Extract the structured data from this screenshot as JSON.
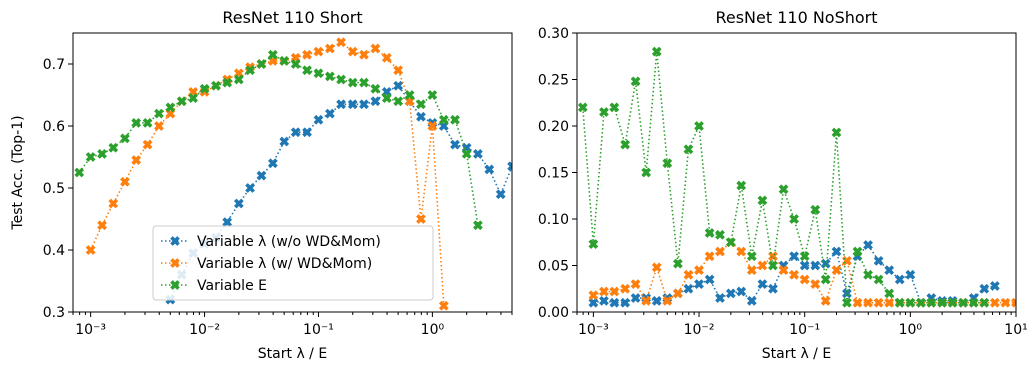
{
  "chart_data": [
    {
      "type": "line",
      "title": "ResNet 110 Short",
      "xlabel": "Start λ / E",
      "ylabel": "Test Acc. (Top-1)",
      "log_x": true,
      "legend": "lower center",
      "x": [
        0.000794,
        0.001,
        0.00126,
        0.00158,
        0.002,
        0.00251,
        0.00316,
        0.00398,
        0.00501,
        0.00631,
        0.00794,
        0.01,
        0.0126,
        0.0158,
        0.02,
        0.0251,
        0.0316,
        0.0398,
        0.0501,
        0.0631,
        0.0794,
        0.1,
        0.126,
        0.158,
        0.2,
        0.251,
        0.316,
        0.398,
        0.501,
        0.631,
        0.794,
        1,
        1.26,
        1.58,
        2,
        2.51,
        3.16,
        3.98,
        5.01
      ],
      "xlim": [
        0.0007,
        5
      ],
      "ylim": [
        0.3,
        0.75
      ],
      "xticks": [
        {
          "value": 0.001,
          "label": "10⁻³"
        },
        {
          "value": 0.01,
          "label": "10⁻²"
        },
        {
          "value": 0.1,
          "label": "10⁻¹"
        },
        {
          "value": 1,
          "label": "10⁰"
        }
      ],
      "yticks": [
        0.3,
        0.4,
        0.5,
        0.6,
        0.7
      ],
      "series": [
        {
          "name": "Variable λ (w/o WD&Mom)",
          "color": "#1f77b4",
          "values": [
            null,
            null,
            null,
            null,
            null,
            null,
            null,
            null,
            0.32,
            0.36,
            0.395,
            0.41,
            0.42,
            0.445,
            0.475,
            0.5,
            0.52,
            0.54,
            0.575,
            0.59,
            0.59,
            0.61,
            0.62,
            0.635,
            0.635,
            0.635,
            0.64,
            0.655,
            0.665,
            0.64,
            0.615,
            0.605,
            0.6,
            0.57,
            0.565,
            0.555,
            0.53,
            0.49,
            0.535
          ]
        },
        {
          "name": "Variable λ (w/ WD&Mom)",
          "color": "#ff7f0e",
          "values": [
            null,
            0.4,
            0.44,
            0.475,
            0.51,
            0.545,
            0.57,
            0.6,
            0.62,
            0.64,
            0.655,
            0.655,
            0.665,
            0.675,
            0.685,
            0.695,
            0.7,
            0.705,
            0.705,
            0.71,
            0.715,
            0.72,
            0.725,
            0.735,
            0.72,
            0.715,
            0.725,
            0.71,
            0.69,
            0.64,
            0.45,
            0.6,
            0.31,
            null,
            null,
            null,
            null,
            null,
            null
          ]
        },
        {
          "name": "Variable E",
          "color": "#2ca02c",
          "values": [
            0.525,
            0.55,
            0.555,
            0.565,
            0.58,
            0.605,
            0.605,
            0.62,
            0.63,
            0.64,
            0.645,
            0.66,
            0.665,
            0.67,
            0.675,
            0.69,
            0.7,
            0.715,
            0.705,
            0.7,
            0.69,
            0.685,
            0.68,
            0.675,
            0.67,
            0.67,
            0.66,
            0.645,
            0.64,
            0.65,
            0.635,
            0.65,
            0.61,
            0.61,
            0.555,
            0.44,
            null,
            null,
            null
          ]
        }
      ]
    },
    {
      "type": "line",
      "title": "ResNet 110 NoShort",
      "xlabel": "Start λ / E",
      "log_x": true,
      "x": [
        0.000794,
        0.001,
        0.00126,
        0.00158,
        0.002,
        0.00251,
        0.00316,
        0.00398,
        0.00501,
        0.00631,
        0.00794,
        0.01,
        0.0126,
        0.0158,
        0.02,
        0.0251,
        0.0316,
        0.0398,
        0.0501,
        0.0631,
        0.0794,
        0.1,
        0.126,
        0.158,
        0.2,
        0.251,
        0.316,
        0.398,
        0.501,
        0.631,
        0.794,
        1,
        1.26,
        1.58,
        2,
        2.51,
        3.16,
        3.98,
        5.01,
        6.31,
        7.94,
        10
      ],
      "xlim": [
        0.0007,
        10
      ],
      "ylim": [
        0,
        0.3
      ],
      "xticks": [
        {
          "value": 0.001,
          "label": "10⁻³"
        },
        {
          "value": 0.01,
          "label": "10⁻²"
        },
        {
          "value": 0.1,
          "label": "10⁻¹"
        },
        {
          "value": 1,
          "label": "10⁰"
        },
        {
          "value": 10,
          "label": "10¹"
        }
      ],
      "yticks": [
        {
          "value": 0,
          "label": "0.00"
        },
        {
          "value": 0.05,
          "label": "0.05"
        },
        {
          "value": 0.1,
          "label": "0.10"
        },
        {
          "value": 0.15,
          "label": "0.15"
        },
        {
          "value": 0.2,
          "label": "0.20"
        },
        {
          "value": 0.25,
          "label": "0.25"
        },
        {
          "value": 0.3,
          "label": "0.30"
        }
      ],
      "series": [
        {
          "color": "#1f77b4",
          "values": [
            null,
            0.01,
            0.012,
            0.01,
            0.01,
            0.015,
            0.015,
            0.012,
            0.015,
            0.02,
            0.025,
            0.03,
            0.035,
            0.015,
            0.02,
            0.022,
            0.012,
            0.03,
            0.025,
            0.05,
            0.06,
            0.05,
            0.05,
            0.052,
            0.065,
            0.02,
            0.06,
            0.072,
            0.055,
            0.045,
            0.035,
            0.04,
            0.01,
            0.015,
            0.012,
            0.012,
            0.01,
            0.015,
            0.025,
            0.028,
            null,
            null
          ]
        },
        {
          "color": "#ff7f0e",
          "values": [
            null,
            0.018,
            0.022,
            0.022,
            0.025,
            0.03,
            0.012,
            0.048,
            0.012,
            0.02,
            0.04,
            0.045,
            0.06,
            0.065,
            0.075,
            0.065,
            0.045,
            0.05,
            0.06,
            0.045,
            0.04,
            0.035,
            0.03,
            0.012,
            0.045,
            0.055,
            0.01,
            0.01,
            0.01,
            0.01,
            0.01,
            0.01,
            0.01,
            0.01,
            0.01,
            0.01,
            0.01,
            0.01,
            0.01,
            0.01,
            0.01,
            0.01
          ]
        },
        {
          "color": "#2ca02c",
          "values": [
            0.22,
            0.073,
            0.215,
            0.22,
            0.18,
            0.248,
            0.15,
            0.28,
            0.16,
            0.052,
            0.175,
            0.2,
            0.085,
            0.083,
            0.075,
            0.136,
            0.06,
            0.12,
            0.05,
            0.132,
            0.1,
            0.06,
            0.11,
            0.035,
            0.193,
            0.01,
            0.065,
            0.04,
            0.035,
            0.02,
            0.01,
            0.01,
            0.01,
            0.01,
            0.01,
            0.01,
            0.01,
            0.01,
            0.01,
            null,
            null,
            null
          ]
        }
      ]
    }
  ]
}
